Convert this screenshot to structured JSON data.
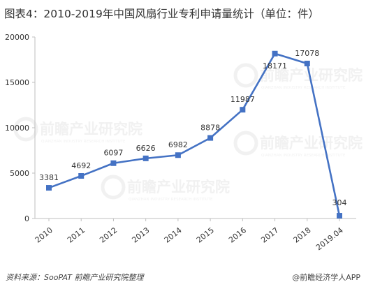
{
  "title": "图表4：2010-2019年中国风扇行业专利申请量统计（单位：件）",
  "footer": {
    "source": "资料来源：SooPAT  前瞻产业研究院整理",
    "brand": "@前瞻经济学人APP"
  },
  "watermark": {
    "text": "前瞻产业研究院",
    "subtext": "QIANZHAN INDUSTRY RESEARCH INSTITUTE"
  },
  "colors": {
    "line": "#4472c4",
    "marker": "#4472c4",
    "axis": "#bfbfbf",
    "text": "#333333",
    "watermark": "#e6e6e6"
  },
  "chart_data": {
    "type": "line",
    "categories": [
      "2010",
      "2011",
      "2012",
      "2013",
      "2014",
      "2015",
      "2016",
      "2017",
      "2018",
      "2019.04"
    ],
    "series": [
      {
        "values": [
          3381,
          4692,
          6097,
          6626,
          6982,
          8878,
          11987,
          18171,
          17078,
          304
        ],
        "labels": [
          "3381",
          "4692",
          "6097",
          "6626",
          "6982",
          "8878",
          "11987",
          "18171",
          "17078",
          "304"
        ]
      }
    ],
    "ylim": [
      0,
      20000
    ],
    "yticks": [
      "0",
      "5000",
      "10000",
      "15000",
      "20000"
    ],
    "xlabel": "",
    "ylabel": "",
    "grid": false,
    "marker": "square"
  }
}
